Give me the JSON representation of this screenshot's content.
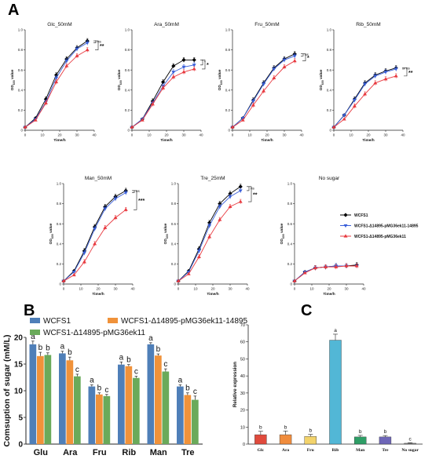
{
  "figure": {
    "panel_labels": [
      "A",
      "B",
      "C"
    ]
  },
  "colors": {
    "wcfs1": "#000000",
    "complement": "#3a5fd9",
    "mutant": "#e8393f",
    "bar_wcfs1": "#4f7fb8",
    "bar_complement": "#f0923a",
    "bar_mutant": "#6aaa5a"
  },
  "chart_data": [
    {
      "panel": "A",
      "type": "line",
      "title": "Glc_50mM",
      "xlabel": "Time/h",
      "ylabel": "OD600 value",
      "xlim": [
        0,
        40
      ],
      "ylim": [
        0,
        1.0
      ],
      "xticks": [
        0,
        10,
        20,
        30,
        40
      ],
      "yticks": [
        "0",
        "0.2",
        "0.4",
        "0.6",
        "0.8",
        "1.0"
      ],
      "x": [
        0,
        6,
        12,
        18,
        24,
        30,
        36
      ],
      "series": [
        {
          "name": "WCFS1",
          "values": [
            0.03,
            0.12,
            0.31,
            0.55,
            0.71,
            0.82,
            0.89
          ]
        },
        {
          "name": "WCFS1-Δ14895-pMG36ek11-14895",
          "values": [
            0.03,
            0.11,
            0.28,
            0.52,
            0.69,
            0.81,
            0.87
          ]
        },
        {
          "name": "WCFS1-Δ14895-pMG36ek11",
          "values": [
            0.03,
            0.1,
            0.27,
            0.48,
            0.64,
            0.74,
            0.8
          ]
        }
      ],
      "annotations": [
        "ns",
        "**"
      ]
    },
    {
      "panel": "A",
      "type": "line",
      "title": "Ara_50mM",
      "xlabel": "Time/h",
      "ylabel": "OD600 value",
      "xlim": [
        0,
        40
      ],
      "ylim": [
        0,
        1.0
      ],
      "xticks": [
        0,
        10,
        20,
        30,
        40
      ],
      "yticks": [
        "0",
        "0.2",
        "0.4",
        "0.6",
        "0.8",
        "1.0"
      ],
      "x": [
        0,
        6,
        12,
        18,
        24,
        30,
        36
      ],
      "series": [
        {
          "name": "WCFS1",
          "values": [
            0.03,
            0.11,
            0.29,
            0.48,
            0.64,
            0.7,
            0.7
          ]
        },
        {
          "name": "WCFS1-Δ14895-pMG36ek11-14895",
          "values": [
            0.03,
            0.11,
            0.27,
            0.44,
            0.58,
            0.63,
            0.65
          ]
        },
        {
          "name": "WCFS1-Δ14895-pMG36ek11",
          "values": [
            0.03,
            0.1,
            0.26,
            0.42,
            0.53,
            0.58,
            0.61
          ]
        }
      ],
      "annotations": [
        "*",
        "*"
      ]
    },
    {
      "panel": "A",
      "type": "line",
      "title": "Fru_50mM",
      "xlabel": "Time/h",
      "ylabel": "OD600 value",
      "xlim": [
        0,
        40
      ],
      "ylim": [
        0,
        1.0
      ],
      "xticks": [
        0,
        10,
        20,
        30,
        40
      ],
      "yticks": [
        "0",
        "0.2",
        "0.4",
        "0.6",
        "0.8",
        "1.0"
      ],
      "x": [
        0,
        6,
        12,
        18,
        24,
        30,
        36
      ],
      "series": [
        {
          "name": "WCFS1",
          "values": [
            0.03,
            0.12,
            0.3,
            0.47,
            0.62,
            0.71,
            0.76
          ]
        },
        {
          "name": "WCFS1-Δ14895-pMG36ek11-14895",
          "values": [
            0.03,
            0.12,
            0.29,
            0.46,
            0.61,
            0.7,
            0.74
          ]
        },
        {
          "name": "WCFS1-Δ14895-pMG36ek11",
          "values": [
            0.03,
            0.1,
            0.25,
            0.39,
            0.52,
            0.63,
            0.69
          ]
        }
      ],
      "annotations": [
        "ns",
        "*"
      ]
    },
    {
      "panel": "A",
      "type": "line",
      "title": "Rib_50mM",
      "xlabel": "Time/h",
      "ylabel": "OD600 value",
      "xlim": [
        0,
        40
      ],
      "ylim": [
        0,
        1.0
      ],
      "xticks": [
        0,
        10,
        20,
        30,
        40
      ],
      "yticks": [
        "0",
        "0.2",
        "0.4",
        "0.6",
        "0.8",
        "1.0"
      ],
      "x": [
        0,
        6,
        12,
        18,
        24,
        30,
        36
      ],
      "series": [
        {
          "name": "WCFS1",
          "values": [
            0.03,
            0.15,
            0.31,
            0.47,
            0.55,
            0.59,
            0.62
          ]
        },
        {
          "name": "WCFS1-Δ14895-pMG36ek11-14895",
          "values": [
            0.03,
            0.15,
            0.3,
            0.46,
            0.54,
            0.58,
            0.61
          ]
        },
        {
          "name": "WCFS1-Δ14895-pMG36ek11",
          "values": [
            0.03,
            0.11,
            0.24,
            0.36,
            0.47,
            0.51,
            0.54
          ]
        }
      ],
      "annotations": [
        "ns",
        "**"
      ]
    },
    {
      "panel": "A",
      "type": "line",
      "title": "Man_50mM",
      "xlabel": "Time/h",
      "ylabel": "OD600 value",
      "xlim": [
        0,
        40
      ],
      "ylim": [
        0,
        1.0
      ],
      "xticks": [
        0,
        10,
        20,
        30,
        40
      ],
      "yticks": [
        "0",
        "0.2",
        "0.4",
        "0.6",
        "0.8",
        "1.0"
      ],
      "x": [
        0,
        6,
        12,
        18,
        24,
        30,
        36
      ],
      "series": [
        {
          "name": "WCFS1",
          "values": [
            0.03,
            0.13,
            0.33,
            0.57,
            0.77,
            0.87,
            0.93
          ]
        },
        {
          "name": "WCFS1-Δ14895-pMG36ek11-14895",
          "values": [
            0.03,
            0.12,
            0.31,
            0.55,
            0.75,
            0.85,
            0.91
          ]
        },
        {
          "name": "WCFS1-Δ14895-pMG36ek11",
          "values": [
            0.03,
            0.09,
            0.22,
            0.4,
            0.56,
            0.66,
            0.74
          ]
        }
      ],
      "annotations": [
        "ns",
        "***"
      ]
    },
    {
      "panel": "A",
      "type": "line",
      "title": "Tre_25mM",
      "xlabel": "Time/h",
      "ylabel": "OD600 value",
      "xlim": [
        0,
        40
      ],
      "ylim": [
        0,
        1.0
      ],
      "xticks": [
        0,
        10,
        20,
        30,
        40
      ],
      "yticks": [
        "0",
        "0.2",
        "0.4",
        "0.6",
        "0.8",
        "1.0"
      ],
      "x": [
        0,
        6,
        12,
        18,
        24,
        30,
        36
      ],
      "series": [
        {
          "name": "WCFS1",
          "values": [
            0.03,
            0.13,
            0.35,
            0.61,
            0.8,
            0.9,
            0.97
          ]
        },
        {
          "name": "WCFS1-Δ14895-pMG36ek11-14895",
          "values": [
            0.03,
            0.12,
            0.33,
            0.58,
            0.77,
            0.87,
            0.93
          ]
        },
        {
          "name": "WCFS1-Δ14895-pMG36ek11",
          "values": [
            0.03,
            0.1,
            0.27,
            0.47,
            0.64,
            0.77,
            0.82
          ]
        }
      ],
      "annotations": [
        "ns",
        "**"
      ]
    },
    {
      "panel": "A",
      "type": "line",
      "title": "No sugar",
      "xlabel": "Time/h",
      "ylabel": "OD600 value",
      "xlim": [
        0,
        40
      ],
      "ylim": [
        0,
        1.0
      ],
      "xticks": [
        0,
        10,
        20,
        30,
        40
      ],
      "yticks": [
        "0",
        "0.2",
        "0.4",
        "0.6",
        "0.8",
        "1.0"
      ],
      "x": [
        0,
        6,
        12,
        18,
        24,
        30,
        36
      ],
      "series": [
        {
          "name": "WCFS1",
          "values": [
            0.03,
            0.12,
            0.16,
            0.17,
            0.18,
            0.18,
            0.19
          ]
        },
        {
          "name": "WCFS1-Δ14895-pMG36ek11-14895",
          "values": [
            0.03,
            0.12,
            0.16,
            0.17,
            0.18,
            0.18,
            0.18
          ]
        },
        {
          "name": "WCFS1-Δ14895-pMG36ek11",
          "values": [
            0.03,
            0.11,
            0.16,
            0.17,
            0.17,
            0.18,
            0.18
          ]
        }
      ],
      "annotations": []
    },
    {
      "panel": "B",
      "type": "bar",
      "ylabel": "Comsuption of sugar (mM/L)",
      "categories": [
        "Glu",
        "Ara",
        "Fru",
        "Rib",
        "Man",
        "Tre"
      ],
      "ylim": [
        0,
        20
      ],
      "yticks": [
        0,
        5,
        10,
        15,
        20
      ],
      "series": [
        {
          "name": "WCFS1",
          "values": [
            18.7,
            17.0,
            10.8,
            14.9,
            18.7,
            10.8
          ]
        },
        {
          "name": "WCFS1-Δ14895-pMG36ek11-14895",
          "values": [
            16.5,
            15.7,
            9.3,
            14.6,
            16.6,
            9.2
          ]
        },
        {
          "name": "WCFS1-Δ14895-pMG36ek11",
          "values": [
            16.7,
            12.7,
            9.0,
            12.4,
            13.6,
            8.3
          ]
        }
      ],
      "errors": [
        [
          0.6,
          0.4,
          0.3,
          0.5,
          0.3,
          0.3
        ],
        [
          0.7,
          0.6,
          0.3,
          0.3,
          0.3,
          0.4
        ],
        [
          0.4,
          0.4,
          0.3,
          0.3,
          0.5,
          0.7
        ]
      ],
      "letters": [
        [
          "a",
          "a",
          "a",
          "a",
          "a",
          "a"
        ],
        [
          "b",
          "b",
          "b",
          "b",
          "b",
          "b"
        ],
        [
          "b",
          "c",
          "c",
          "c",
          "c",
          "c"
        ]
      ]
    },
    {
      "panel": "C",
      "type": "bar",
      "ylabel": "Relative expression",
      "categories": [
        "Glc",
        "Ara",
        "Fru",
        "Rib",
        "Man",
        "Tre",
        "No sugar"
      ],
      "ylim": [
        0,
        70
      ],
      "yticks": [
        0,
        10,
        20,
        30,
        40,
        50,
        60,
        70
      ],
      "values": [
        5.5,
        5.5,
        4.5,
        61.0,
        4.2,
        4.2,
        0.5
      ],
      "errors": [
        2.0,
        2.2,
        1.2,
        3.5,
        0.9,
        0.8,
        0.3
      ],
      "letters": [
        "b",
        "b",
        "b",
        "a",
        "b",
        "b",
        "c"
      ],
      "colors": [
        "#e04a3c",
        "#f08c3c",
        "#f3d36b",
        "#52b7d6",
        "#2e9e66",
        "#6e66b8",
        "#8a8a8a"
      ]
    }
  ]
}
